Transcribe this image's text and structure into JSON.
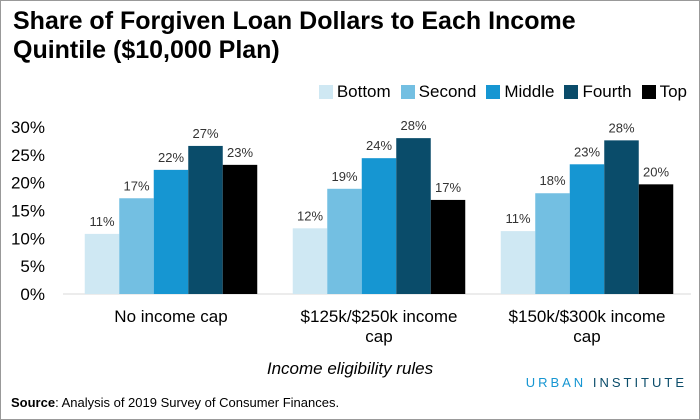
{
  "chart_data": {
    "type": "grouped_bar",
    "title": "Share of Forgiven Loan Dollars to Each Income Quintile ($10,000 Plan)",
    "x_label": "Income eligibility rules",
    "categories": [
      "No income cap",
      "$125k/$250k income cap",
      "$150k/$300k income cap"
    ],
    "series": [
      {
        "name": "Bottom",
        "color": "#cfe8f3",
        "values": [
          10.8,
          11.8,
          11.3
        ],
        "value_labels": [
          "11%",
          "12%",
          "11%"
        ]
      },
      {
        "name": "Second",
        "color": "#73bfe2",
        "values": [
          17.2,
          18.9,
          18.1
        ],
        "value_labels": [
          "17%",
          "19%",
          "18%"
        ]
      },
      {
        "name": "Middle",
        "color": "#1696d2",
        "values": [
          22.3,
          24.4,
          23.3
        ],
        "value_labels": [
          "22%",
          "24%",
          "23%"
        ]
      },
      {
        "name": "Fourth",
        "color": "#0a4c6a",
        "values": [
          26.6,
          28.0,
          27.6
        ],
        "value_labels": [
          "27%",
          "28%",
          "28%"
        ]
      },
      {
        "name": "Top",
        "color": "#000000",
        "values": [
          23.2,
          16.9,
          19.7
        ],
        "value_labels": [
          "23%",
          "17%",
          "20%"
        ]
      }
    ],
    "ylim": [
      0,
      30
    ],
    "yticks": [
      {
        "value": 0,
        "label": "0%"
      },
      {
        "value": 5,
        "label": "5%"
      },
      {
        "value": 10,
        "label": "10%"
      },
      {
        "value": 15,
        "label": "15%"
      },
      {
        "value": 20,
        "label": "20%"
      },
      {
        "value": 25,
        "label": "25%"
      },
      {
        "value": 30,
        "label": "30%"
      }
    ],
    "grid": false,
    "legend": "top-right",
    "source_label": "Source",
    "source_text": ": Analysis of 2019 Survey of Consumer Finances.",
    "brand": [
      "URBAN",
      "INSTITUTE"
    ]
  }
}
